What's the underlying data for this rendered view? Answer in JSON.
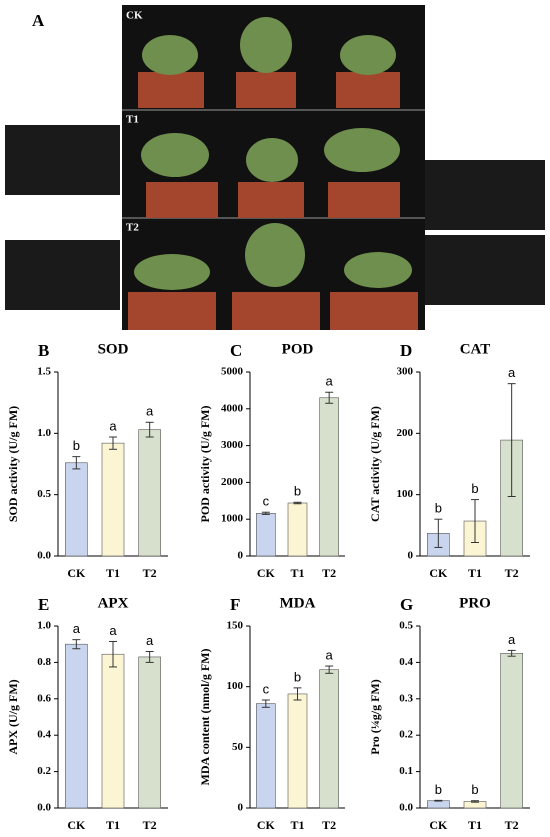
{
  "photo_panel": {
    "label": "A",
    "rows": [
      "CK",
      "T1",
      "T2"
    ]
  },
  "chart_data": [
    {
      "type": "bar",
      "panel": "B",
      "title": "SOD",
      "ylabel": "SOD activity (U/g FM)",
      "categories": [
        "CK",
        "T1",
        "T2"
      ],
      "values": [
        0.76,
        0.92,
        1.03
      ],
      "errors": [
        0.05,
        0.05,
        0.06
      ],
      "annotations": [
        "b",
        "a",
        "a"
      ],
      "colors": [
        "#c9d5ef",
        "#fbf5d3",
        "#d6e0cc"
      ],
      "ylim": [
        0,
        1.5
      ],
      "yticks": [
        {
          "value": 0,
          "label": "0.0"
        },
        {
          "value": 0.5,
          "label": "0.5"
        },
        {
          "value": 1,
          "label": "1.0"
        },
        {
          "value": 1.5,
          "label": "1.5"
        }
      ]
    },
    {
      "type": "bar",
      "panel": "C",
      "title": "POD",
      "ylabel": "POD activity (U/g FM)",
      "categories": [
        "CK",
        "T1",
        "T2"
      ],
      "values": [
        1160,
        1440,
        4300
      ],
      "errors": [
        30,
        20,
        150
      ],
      "annotations": [
        "c",
        "b",
        "a"
      ],
      "colors": [
        "#c9d5ef",
        "#fbf5d3",
        "#d6e0cc"
      ],
      "ylim": [
        0,
        5000
      ],
      "yticks": [
        0,
        1000,
        2000,
        3000,
        4000,
        5000
      ]
    },
    {
      "type": "bar",
      "panel": "D",
      "title": "CAT",
      "ylabel": "CAT activity (U/g FM)",
      "categories": [
        "CK",
        "T1",
        "T2"
      ],
      "values": [
        37,
        57,
        189
      ],
      "errors": [
        23,
        35,
        92
      ],
      "annotations": [
        "b",
        "b",
        "a"
      ],
      "colors": [
        "#c9d5ef",
        "#fbf5d3",
        "#d6e0cc"
      ],
      "ylim": [
        0,
        300
      ],
      "yticks": [
        0,
        100,
        200,
        300
      ]
    },
    {
      "type": "bar",
      "panel": "E",
      "title": "APX",
      "ylabel": "APX (U/g FM)",
      "categories": [
        "CK",
        "T1",
        "T2"
      ],
      "values": [
        0.9,
        0.845,
        0.83
      ],
      "errors": [
        0.025,
        0.07,
        0.03
      ],
      "annotations": [
        "a",
        "a",
        "a"
      ],
      "colors": [
        "#c9d5ef",
        "#fbf5d3",
        "#d6e0cc"
      ],
      "ylim": [
        0,
        1
      ],
      "yticks": [
        {
          "value": 0,
          "label": "0.0"
        },
        {
          "value": 0.2,
          "label": "0.2"
        },
        {
          "value": 0.4,
          "label": "0.4"
        },
        {
          "value": 0.6,
          "label": "0.6"
        },
        {
          "value": 0.8,
          "label": "0.8"
        },
        {
          "value": 1,
          "label": "1.0"
        }
      ]
    },
    {
      "type": "bar",
      "panel": "F",
      "title": "MDA",
      "ylabel": "MDA content (nmol/g FM)",
      "categories": [
        "CK",
        "T1",
        "T2"
      ],
      "values": [
        86,
        94,
        114
      ],
      "errors": [
        3,
        5,
        3
      ],
      "annotations": [
        "c",
        "b",
        "a"
      ],
      "colors": [
        "#c9d5ef",
        "#fbf5d3",
        "#d6e0cc"
      ],
      "ylim": [
        0,
        150
      ],
      "yticks": [
        0,
        50,
        100,
        150
      ]
    },
    {
      "type": "bar",
      "panel": "G",
      "title": "PRO",
      "ylabel": "Pro (¼g/g FM)",
      "categories": [
        "CK",
        "T1",
        "T2"
      ],
      "values": [
        0.02,
        0.018,
        0.425
      ],
      "errors": [
        0.001,
        0.002,
        0.008
      ],
      "annotations": [
        "b",
        "b",
        "a"
      ],
      "colors": [
        "#c9d5ef",
        "#fbf5d3",
        "#d6e0cc"
      ],
      "ylim": [
        0,
        0.5
      ],
      "yticks": [
        {
          "value": 0,
          "label": "0.0"
        },
        {
          "value": 0.1,
          "label": "0.1"
        },
        {
          "value": 0.2,
          "label": "0.2"
        },
        {
          "value": 0.3,
          "label": "0.3"
        },
        {
          "value": 0.4,
          "label": "0.4"
        },
        {
          "value": 0.5,
          "label": "0.5"
        }
      ]
    }
  ]
}
